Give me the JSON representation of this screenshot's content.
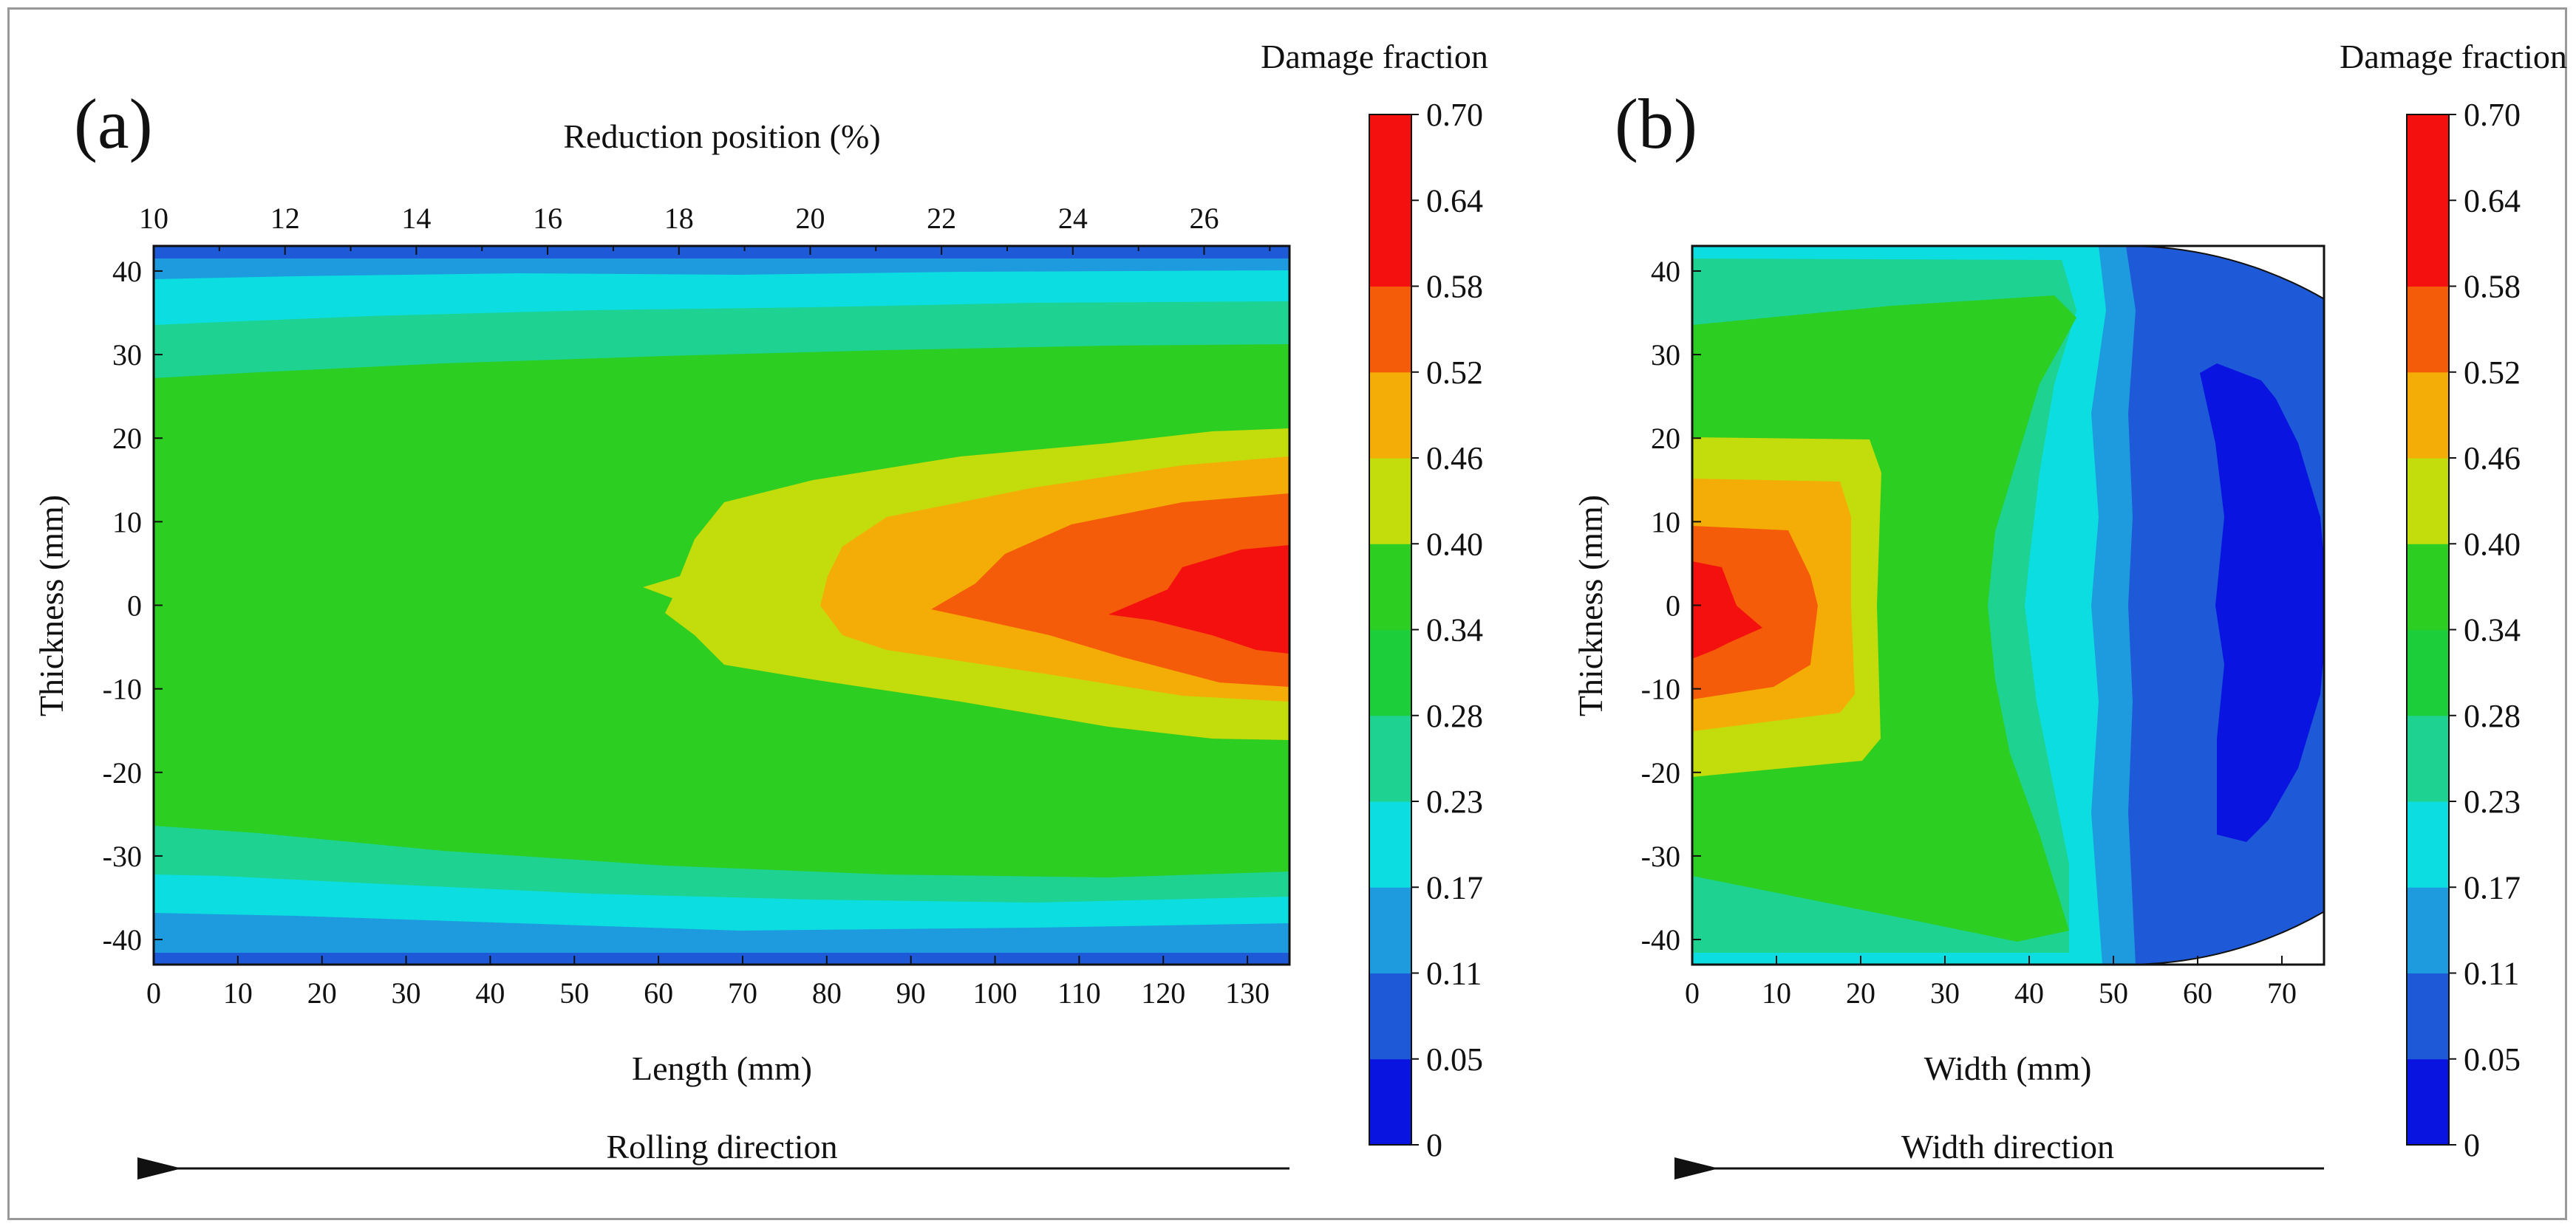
{
  "figure": {
    "panel_a_label": "(a)",
    "panel_b_label": "(b)"
  },
  "colorbar": {
    "title": "Damage fraction",
    "levels": [
      "0",
      "0.05",
      "0.11",
      "0.17",
      "0.23",
      "0.28",
      "0.34",
      "0.40",
      "0.46",
      "0.52",
      "0.58",
      "0.64",
      "0.70"
    ],
    "colors": [
      "#0a14e0",
      "#1e5ad8",
      "#1e9ade",
      "#0bdde0",
      "#1ed292",
      "#1cce3a",
      "#2bce21",
      "#c3dc0c",
      "#f4ad06",
      "#f45c09",
      "#f51010",
      "#f51010"
    ]
  },
  "chart_data": [
    {
      "type": "heatmap",
      "panel": "(a)",
      "xlabel": "Length (mm)",
      "ylabel": "Thickness (mm)",
      "secondary_xlabel": "Reduction position (%)",
      "xlim": [
        0,
        135
      ],
      "ylim": [
        -43,
        43
      ],
      "xticks": [
        "0",
        "10",
        "20",
        "30",
        "40",
        "50",
        "60",
        "70",
        "80",
        "90",
        "100",
        "110",
        "120",
        "130"
      ],
      "yticks": [
        "40",
        "30",
        "20",
        "10",
        "0",
        "-10",
        "-20",
        "-30",
        "-40"
      ],
      "secondary_xticks": [
        "10",
        "12",
        "14",
        "16",
        "18",
        "20",
        "22",
        "24",
        "26"
      ],
      "colorbar_label": "Damage fraction",
      "bottom_arrow_label": "Rolling direction",
      "description_values": {
        "max_damage_region": {
          "x_range": [
            110,
            135
          ],
          "y_range": [
            -8,
            8
          ],
          "value": 0.7
        },
        "center_value_at_x0": 0.4,
        "surface_value": 0.05
      }
    },
    {
      "type": "heatmap",
      "panel": "(b)",
      "xlabel": "Width (mm)",
      "ylabel": "Thickness (mm)",
      "xlim": [
        0,
        75
      ],
      "ylim": [
        -43,
        43
      ],
      "xticks": [
        "0",
        "10",
        "20",
        "30",
        "40",
        "50",
        "60",
        "70"
      ],
      "yticks": [
        "40",
        "30",
        "20",
        "10",
        "0",
        "-10",
        "-20",
        "-30",
        "-40"
      ],
      "colorbar_label": "Damage fraction",
      "bottom_arrow_label": "Width direction",
      "description_values": {
        "max_damage_region": {
          "x_range": [
            0,
            8
          ],
          "y_range": [
            -5,
            5
          ],
          "value": 0.7
        },
        "edge_value": 0.05
      }
    }
  ]
}
